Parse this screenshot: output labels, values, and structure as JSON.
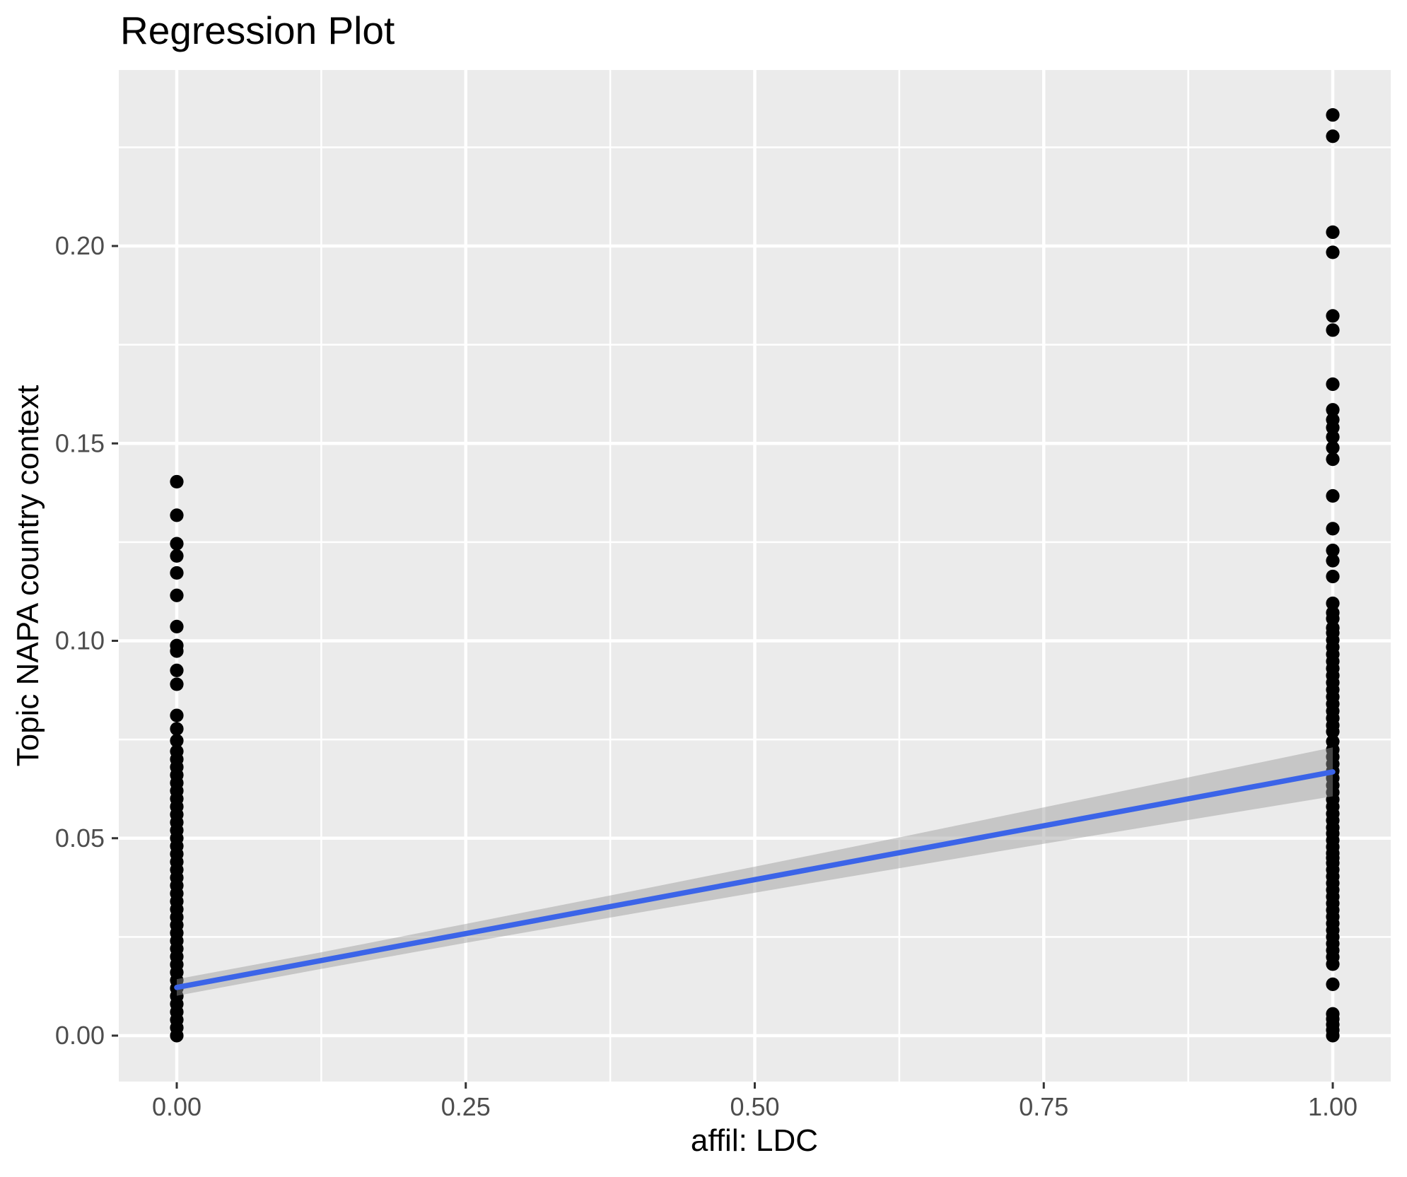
{
  "title": "Regression Plot",
  "chart_data": {
    "type": "scatter",
    "title": "Regression Plot",
    "xlabel": "affil: LDC",
    "ylabel": "Topic NAPA country context",
    "xlim": [
      -0.05,
      1.05
    ],
    "ylim": [
      -0.0117,
      0.2449
    ],
    "grid": "white major+minor gridlines on grey panel, legend none",
    "x_ticks": {
      "values": [
        0,
        0.25,
        0.5,
        0.75,
        1.0
      ],
      "labels": [
        "0.00",
        "0.25",
        "0.50",
        "0.75",
        "1.00"
      ]
    },
    "y_ticks": {
      "values": [
        0,
        0.05,
        0.1,
        0.15,
        0.2
      ],
      "labels": [
        "0.00",
        "0.05",
        "0.10",
        "0.15",
        "0.20"
      ]
    },
    "x_minor": [
      0.125,
      0.375,
      0.625,
      0.875
    ],
    "y_minor": [
      0.025,
      0.075,
      0.125,
      0.175,
      0.225
    ],
    "series": [
      {
        "name": "observations at affil LDC = 0",
        "x": 0,
        "values": [
          0.1403,
          0.1318,
          0.1246,
          0.1215,
          0.1172,
          0.1115,
          0.1036,
          0.0988,
          0.0974,
          0.0925,
          0.089,
          0.0811,
          0.0777,
          0.0747,
          0.072,
          0.07,
          0.068,
          0.066,
          0.064,
          0.062,
          0.06,
          0.058,
          0.056,
          0.054,
          0.052,
          0.05,
          0.048,
          0.046,
          0.044,
          0.042,
          0.04,
          0.038,
          0.036,
          0.034,
          0.032,
          0.03,
          0.028,
          0.026,
          0.024,
          0.022,
          0.02,
          0.018,
          0.016,
          0.014,
          0.012,
          0.01,
          0.008,
          0.006,
          0.004,
          0.002,
          0.0
        ]
      },
      {
        "name": "observations at affil LDC = 1",
        "x": 1,
        "values": [
          0.2332,
          0.2278,
          0.2035,
          0.1984,
          0.1823,
          0.1787,
          0.165,
          0.1585,
          0.156,
          0.154,
          0.1516,
          0.1489,
          0.146,
          0.1367,
          0.1284,
          0.1229,
          0.1203,
          0.1163,
          0.1095,
          0.1071,
          0.1056,
          0.1033,
          0.102,
          0.1002,
          0.0984,
          0.0966,
          0.0948,
          0.093,
          0.0912,
          0.0894,
          0.0876,
          0.0858,
          0.084,
          0.0822,
          0.0804,
          0.0786,
          0.077,
          0.0745,
          0.0724,
          0.0706,
          0.0688,
          0.067,
          0.0652,
          0.0634,
          0.0616,
          0.0598,
          0.058,
          0.0562,
          0.0545,
          0.0527,
          0.0512,
          0.0495,
          0.0478,
          0.0462,
          0.045,
          0.0437,
          0.042,
          0.0403,
          0.0386,
          0.0369,
          0.0352,
          0.0335,
          0.0318,
          0.0301,
          0.0284,
          0.0267,
          0.025,
          0.0233,
          0.0216,
          0.0199,
          0.0181,
          0.013,
          0.0055,
          0.0042,
          0.0028,
          0.0014,
          0.0
        ]
      }
    ],
    "regression_line": {
      "x": [
        0,
        1
      ],
      "v": [
        0.0122,
        0.0668
      ],
      "slope": 0.0546,
      "intercept": 0.0122
    },
    "confidence_band": {
      "x": [
        0,
        0.125,
        0.25,
        0.375,
        0.5,
        0.625,
        0.75,
        0.875,
        1.0
      ],
      "center": [
        0.0122,
        0.019,
        0.0259,
        0.0327,
        0.0395,
        0.0463,
        0.0532,
        0.06,
        0.0668
      ],
      "half_width": [
        0.0021,
        0.0021,
        0.0024,
        0.0028,
        0.0033,
        0.0039,
        0.0046,
        0.0054,
        0.0062
      ]
    },
    "colors": {
      "panel_background": "#EBEBEB",
      "gridline": "#FFFFFF",
      "point": "#000000",
      "line": "#3B64E8",
      "band_fill": "#999999",
      "band_opacity": 0.45,
      "tick_mark": "#333333",
      "tick_label": "#4D4D4D",
      "title": "#000000"
    }
  }
}
